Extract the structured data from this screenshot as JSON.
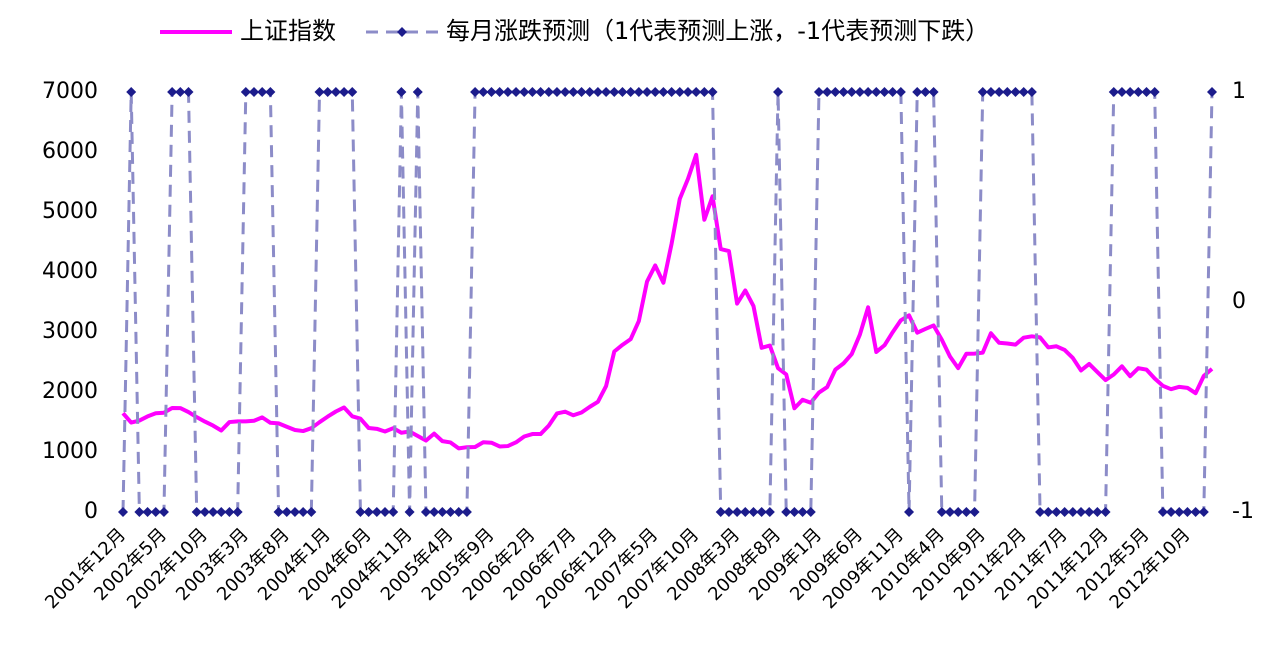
{
  "chart_data": {
    "type": "line",
    "categories": [
      "2001年12月",
      null,
      null,
      null,
      null,
      "2002年5月",
      null,
      null,
      null,
      null,
      "2002年10月",
      null,
      null,
      null,
      null,
      "2003年3月",
      null,
      null,
      null,
      null,
      "2003年8月",
      null,
      null,
      null,
      null,
      "2004年1月",
      null,
      null,
      null,
      null,
      "2004年6月",
      null,
      null,
      null,
      null,
      "2004年11月",
      null,
      null,
      null,
      null,
      "2005年4月",
      null,
      null,
      null,
      null,
      "2005年9月",
      null,
      null,
      null,
      null,
      "2006年2月",
      null,
      null,
      null,
      null,
      "2006年7月",
      null,
      null,
      null,
      null,
      "2006年12月",
      null,
      null,
      null,
      null,
      "2007年5月",
      null,
      null,
      null,
      null,
      "2007年10月",
      null,
      null,
      null,
      null,
      "2008年3月",
      null,
      null,
      null,
      null,
      "2008年8月",
      null,
      null,
      null,
      null,
      "2009年1月",
      null,
      null,
      null,
      null,
      "2009年6月",
      null,
      null,
      null,
      null,
      "2009年11月",
      null,
      null,
      null,
      null,
      "2010年4月",
      null,
      null,
      null,
      null,
      "2010年9月",
      null,
      null,
      null,
      null,
      "2011年2月",
      null,
      null,
      null,
      null,
      "2011年7月",
      null,
      null,
      null,
      null,
      "2011年12月",
      null,
      null,
      null,
      null,
      "2012年5月",
      null,
      null,
      null,
      null,
      "2012年10月",
      null,
      null,
      null
    ],
    "series": [
      {
        "name": "上证指数",
        "color": "#ff00ff",
        "values": [
          1646,
          1490,
          1524,
          1593,
          1646,
          1655,
          1733,
          1732,
          1666,
          1581,
          1507,
          1440,
          1358,
          1499,
          1511,
          1511,
          1521,
          1577,
          1487,
          1477,
          1421,
          1367,
          1349,
          1397,
          1497,
          1590,
          1675,
          1742,
          1595,
          1556,
          1400,
          1386,
          1342,
          1397,
          1321,
          1341,
          1266,
          1191,
          1306,
          1181,
          1159,
          1060,
          1080,
          1083,
          1162,
          1155,
          1092,
          1099,
          1161,
          1258,
          1299,
          1299,
          1440,
          1642,
          1672,
          1612,
          1658,
          1752,
          1837,
          2099,
          2675,
          2786,
          2881,
          3183,
          3841,
          4109,
          3821,
          4471,
          5218,
          5552,
          5954,
          4871,
          5262,
          4383,
          4348,
          3473,
          3693,
          3433,
          2736,
          2775,
          2397,
          2293,
          1729,
          1871,
          1821,
          1991,
          2082,
          2373,
          2477,
          2632,
          2959,
          3412,
          2667,
          2779,
          2996,
          3195,
          3277,
          2989,
          3051,
          3109,
          2870,
          2592,
          2398,
          2638,
          2639,
          2656,
          2979,
          2820,
          2808,
          2790,
          2905,
          2928,
          2911,
          2743,
          2762,
          2701,
          2568,
          2359,
          2468,
          2333,
          2199,
          2292,
          2428,
          2263,
          2397,
          2373,
          2225,
          2103,
          2047,
          2086,
          2069,
          1980,
          2269,
          2385
        ]
      },
      {
        "name": "每月涨跌预测（1代表预测上涨，-1代表预测下跌）",
        "color": "#8c8cc8",
        "marker_color": "#1c1c8c",
        "axis": "y2",
        "dashed": true,
        "values": [
          -1,
          1,
          -1,
          -1,
          -1,
          -1,
          1,
          1,
          1,
          -1,
          -1,
          -1,
          -1,
          -1,
          -1,
          1,
          1,
          1,
          1,
          -1,
          -1,
          -1,
          -1,
          -1,
          1,
          1,
          1,
          1,
          1,
          -1,
          -1,
          -1,
          -1,
          -1,
          1,
          -1,
          1,
          -1,
          -1,
          -1,
          -1,
          -1,
          -1,
          1,
          1,
          1,
          1,
          1,
          1,
          1,
          1,
          1,
          1,
          1,
          1,
          1,
          1,
          1,
          1,
          1,
          1,
          1,
          1,
          1,
          1,
          1,
          1,
          1,
          1,
          1,
          1,
          1,
          1,
          -1,
          -1,
          -1,
          -1,
          -1,
          -1,
          -1,
          1,
          -1,
          -1,
          -1,
          -1,
          1,
          1,
          1,
          1,
          1,
          1,
          1,
          1,
          1,
          1,
          1,
          -1,
          1,
          1,
          1,
          -1,
          -1,
          -1,
          -1,
          -1,
          1,
          1,
          1,
          1,
          1,
          1,
          1,
          -1,
          -1,
          -1,
          -1,
          -1,
          -1,
          -1,
          -1,
          -1,
          1,
          1,
          1,
          1,
          1,
          1,
          -1,
          -1,
          -1,
          -1,
          -1,
          -1,
          1
        ]
      }
    ],
    "ylim": [
      0,
      7000
    ],
    "yticks": [
      0,
      1000,
      2000,
      3000,
      4000,
      5000,
      6000,
      7000
    ],
    "y2lim": [
      -1,
      1
    ],
    "y2ticks": [
      -1,
      0,
      1
    ],
    "legend": "top"
  }
}
